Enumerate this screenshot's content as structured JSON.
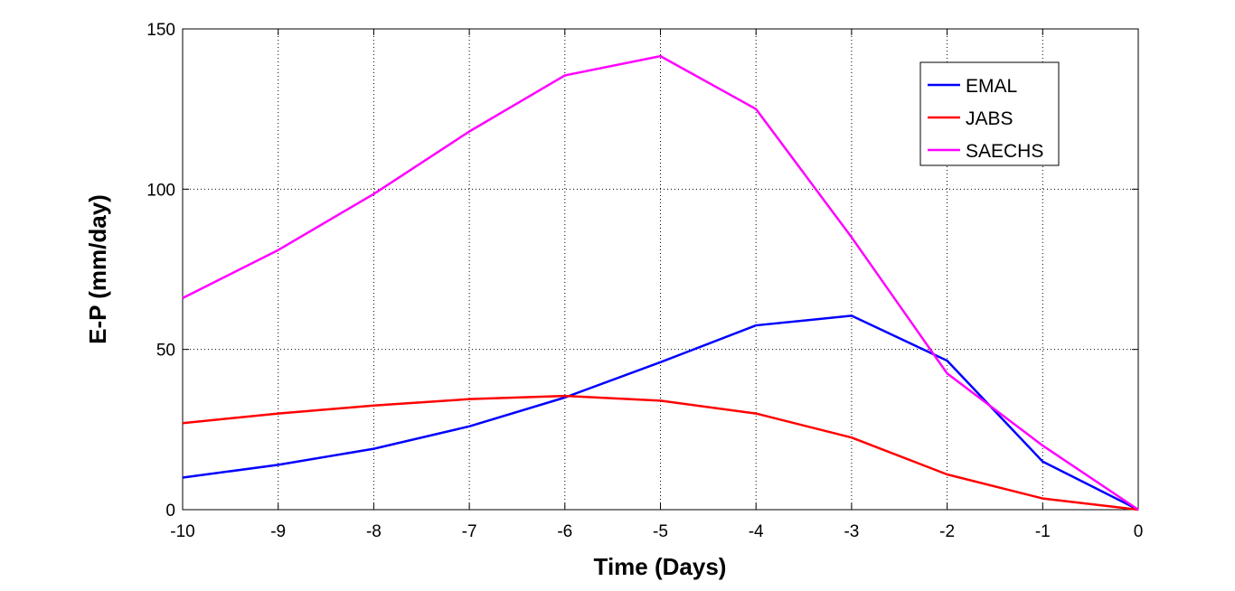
{
  "chart_data": {
    "type": "line",
    "title": "",
    "xlabel": "Time (Days)",
    "ylabel": "E-P (mm/day)",
    "xlim": [
      -10,
      0
    ],
    "ylim": [
      0,
      150
    ],
    "xticks": [
      -10,
      -9,
      -8,
      -7,
      -6,
      -5,
      -4,
      -3,
      -2,
      -1,
      0
    ],
    "yticks": [
      0,
      50,
      100,
      150
    ],
    "grid": true,
    "legend_position": "top-right",
    "x": [
      -10,
      -9,
      -8,
      -7,
      -6,
      -5,
      -4,
      -3,
      -2,
      -1,
      0
    ],
    "series": [
      {
        "name": "EMAL",
        "color": "#0000ff",
        "values": [
          10,
          14,
          19,
          26,
          35,
          46,
          57.5,
          60.5,
          46.5,
          15,
          0
        ]
      },
      {
        "name": "JABS",
        "color": "#ff0000",
        "values": [
          27,
          30,
          32.5,
          34.5,
          35.5,
          34,
          30,
          22.5,
          11,
          3.5,
          0
        ]
      },
      {
        "name": "SAECHS",
        "color": "#ff00ff",
        "values": [
          66,
          81,
          98.5,
          118,
          135.5,
          141.5,
          125,
          85,
          42.5,
          20,
          0
        ]
      }
    ]
  }
}
